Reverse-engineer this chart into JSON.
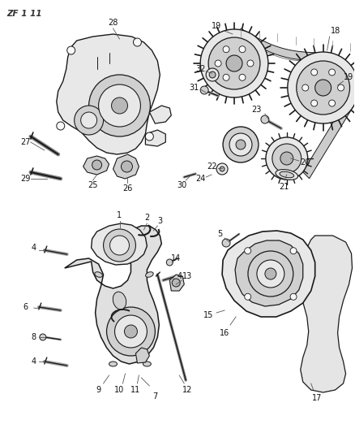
{
  "fig_width": 4.38,
  "fig_height": 5.33,
  "dpi": 100,
  "bg_color": "#ffffff",
  "line_color": "#1a1a1a",
  "label_color": "#111111",
  "label_fontsize": 7.0,
  "header_text": "ZF 1 11",
  "fill_light": "#e8e8e8",
  "fill_mid": "#d0d0d0",
  "fill_dark": "#b8b8b8",
  "fill_white": "#f8f8f8"
}
